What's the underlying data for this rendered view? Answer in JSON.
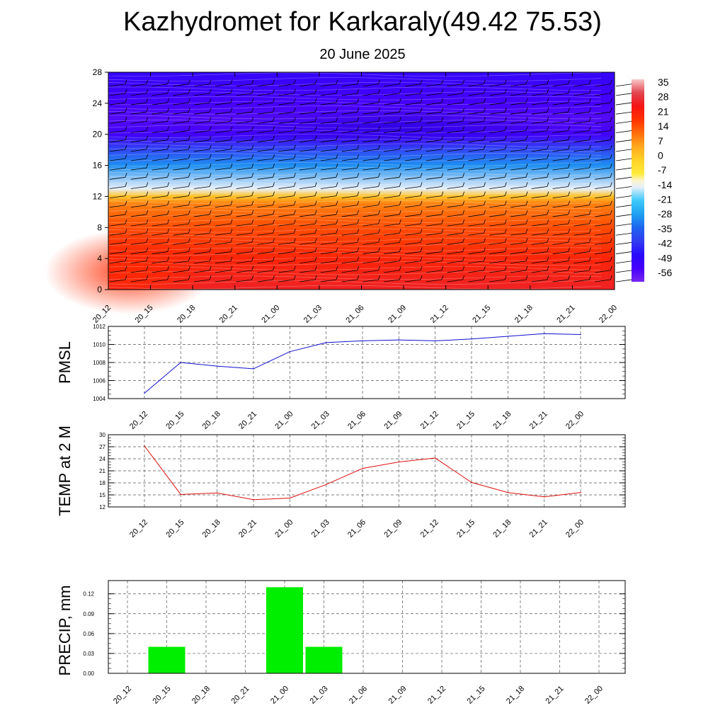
{
  "title": "Kazhydromet for Karkaraly(49.42 75.53)",
  "subtitle": "20 June 2025",
  "colors": {
    "pmsl_line": "#1010cc",
    "temp_line": "#dd1111",
    "precip_bar": "#00ee00",
    "grid": "#555555"
  },
  "chart_data": [
    {
      "type": "heatmap",
      "title": "",
      "xlabel": "",
      "ylabel": "",
      "x_ticks": [
        "20_12",
        "20_15",
        "20_18",
        "20_21",
        "21_00",
        "21_03",
        "21_06",
        "21_09",
        "21_12",
        "21_15",
        "21_18",
        "21_21",
        "22_00"
      ],
      "y_ticks": [
        0,
        4,
        8,
        12,
        16,
        20,
        24,
        28
      ],
      "ylim": [
        0,
        28
      ],
      "colorbar_labels": [
        35,
        28,
        21,
        14,
        7,
        0,
        -7,
        -14,
        -21,
        -28,
        -35,
        -42,
        -49,
        -56
      ],
      "colorbar_range": [
        -63,
        42
      ],
      "overlay": "wind barbs",
      "temperature_profile": {
        "heights": [
          0,
          4,
          8,
          11,
          12,
          13,
          16,
          20,
          22,
          24,
          28
        ],
        "values": [
          30,
          24,
          18,
          12,
          3,
          -14,
          -30,
          -55,
          -58,
          -56,
          -52
        ]
      }
    },
    {
      "type": "line",
      "ylabel": "PMSL",
      "categories": [
        "20_12",
        "20_15",
        "20_18",
        "20_21",
        "21_00",
        "21_03",
        "21_06",
        "21_09",
        "21_12",
        "21_15",
        "21_18",
        "21_21",
        "22_00"
      ],
      "values": [
        1004.6,
        1008.0,
        1007.6,
        1007.3,
        1009.2,
        1010.2,
        1010.4,
        1010.5,
        1010.4,
        1010.6,
        1010.9,
        1011.2,
        1011.1
      ],
      "ylim": [
        1004,
        1012
      ],
      "y_ticks": [
        1004,
        1006,
        1008,
        1010,
        1012
      ],
      "grid": true
    },
    {
      "type": "line",
      "ylabel": "TEMP at 2 M",
      "categories": [
        "20_12",
        "20_15",
        "20_18",
        "20_21",
        "21_00",
        "21_03",
        "21_06",
        "21_09",
        "21_12",
        "21_15",
        "21_18",
        "21_21",
        "22_00"
      ],
      "values": [
        27.2,
        15.1,
        15.5,
        13.8,
        14.2,
        17.6,
        21.6,
        23.2,
        24.2,
        18.1,
        15.6,
        14.5,
        15.6
      ],
      "ylim": [
        12,
        30
      ],
      "y_ticks": [
        12,
        15,
        18,
        21,
        24,
        27,
        30
      ],
      "grid": true
    },
    {
      "type": "bar",
      "ylabel": "PRECIP, mm",
      "categories": [
        "20_12",
        "20_15",
        "20_18",
        "20_21",
        "21_00",
        "21_03",
        "21_06",
        "21_09",
        "21_12",
        "21_15",
        "21_18",
        "21_21",
        "22_00"
      ],
      "values": [
        0,
        0.04,
        0,
        0,
        0.13,
        0.04,
        0,
        0,
        0,
        0,
        0,
        0,
        0
      ],
      "ylim": [
        0,
        0.14
      ],
      "y_ticks": [
        "0.00",
        "0.03",
        "0.06",
        "0.09",
        "0.12"
      ],
      "grid": true
    }
  ]
}
